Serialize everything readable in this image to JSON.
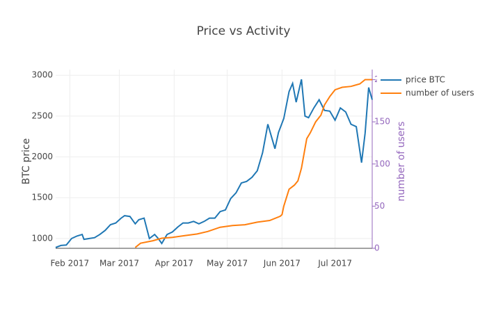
{
  "chart_data": {
    "type": "line",
    "title": "Price vs Activity",
    "y_label": "BTC price",
    "y2_label": "number of users",
    "xlim": [
      "2017-01-24",
      "2017-07-22"
    ],
    "xticks": [
      {
        "value": "2017-02-01",
        "label": "Feb 2017"
      },
      {
        "value": "2017-03-01",
        "label": "Mar 2017"
      },
      {
        "value": "2017-04-01",
        "label": "Apr 2017"
      },
      {
        "value": "2017-05-01",
        "label": "May 2017"
      },
      {
        "value": "2017-06-01",
        "label": "Jun 2017"
      },
      {
        "value": "2017-07-01",
        "label": "Jul 2017"
      }
    ],
    "ylim": [
      880,
      3070
    ],
    "yticks": [
      1000,
      1500,
      2000,
      2500,
      3000
    ],
    "y2lim": [
      0,
      212
    ],
    "y2ticks": [
      0,
      50,
      100,
      150,
      200
    ],
    "grid": true,
    "legend": "top-right",
    "series": [
      {
        "name": "price BTC",
        "color": "#1f77b4",
        "x": [
          "2017-01-24",
          "2017-01-27",
          "2017-01-30",
          "2017-02-02",
          "2017-02-05",
          "2017-02-08",
          "2017-02-09",
          "2017-02-12",
          "2017-02-15",
          "2017-02-18",
          "2017-02-21",
          "2017-02-24",
          "2017-02-27",
          "2017-03-02",
          "2017-03-04",
          "2017-03-07",
          "2017-03-10",
          "2017-03-12",
          "2017-03-15",
          "2017-03-18",
          "2017-03-21",
          "2017-03-23",
          "2017-03-25",
          "2017-03-28",
          "2017-03-31",
          "2017-04-03",
          "2017-04-06",
          "2017-04-09",
          "2017-04-12",
          "2017-04-15",
          "2017-04-18",
          "2017-04-21",
          "2017-04-24",
          "2017-04-27",
          "2017-04-30",
          "2017-05-03",
          "2017-05-06",
          "2017-05-09",
          "2017-05-12",
          "2017-05-15",
          "2017-05-18",
          "2017-05-21",
          "2017-05-24",
          "2017-05-26",
          "2017-05-28",
          "2017-05-30",
          "2017-06-02",
          "2017-06-05",
          "2017-06-07",
          "2017-06-09",
          "2017-06-12",
          "2017-06-14",
          "2017-06-16",
          "2017-06-19",
          "2017-06-22",
          "2017-06-25",
          "2017-06-28",
          "2017-07-01",
          "2017-07-04",
          "2017-07-07",
          "2017-07-10",
          "2017-07-13",
          "2017-07-16",
          "2017-07-18",
          "2017-07-20",
          "2017-07-22"
        ],
        "values": [
          890,
          915,
          920,
          1000,
          1030,
          1050,
          990,
          1000,
          1010,
          1050,
          1100,
          1170,
          1190,
          1250,
          1280,
          1270,
          1180,
          1230,
          1250,
          1000,
          1050,
          1000,
          940,
          1050,
          1080,
          1140,
          1190,
          1190,
          1210,
          1180,
          1210,
          1250,
          1250,
          1330,
          1350,
          1490,
          1560,
          1680,
          1700,
          1750,
          1830,
          2050,
          2400,
          2250,
          2100,
          2300,
          2470,
          2800,
          2900,
          2670,
          2950,
          2500,
          2480,
          2600,
          2700,
          2570,
          2560,
          2450,
          2600,
          2550,
          2400,
          2370,
          1930,
          2290,
          2850,
          2700
        ]
      },
      {
        "name": "number of users",
        "color": "#ff7f0e",
        "axis": "y2",
        "x": [
          "2017-03-10",
          "2017-03-13",
          "2017-03-20",
          "2017-03-25",
          "2017-03-31",
          "2017-04-07",
          "2017-04-14",
          "2017-04-20",
          "2017-04-27",
          "2017-05-04",
          "2017-05-11",
          "2017-05-18",
          "2017-05-25",
          "2017-05-31",
          "2017-06-01",
          "2017-06-02",
          "2017-06-05",
          "2017-06-08",
          "2017-06-10",
          "2017-06-12",
          "2017-06-15",
          "2017-06-17",
          "2017-06-20",
          "2017-06-23",
          "2017-06-25",
          "2017-06-28",
          "2017-07-01",
          "2017-07-05",
          "2017-07-10",
          "2017-07-15",
          "2017-07-18",
          "2017-07-22"
        ],
        "values": [
          1,
          6,
          9,
          12,
          13,
          15,
          17,
          20,
          25,
          27,
          28,
          31,
          33,
          38,
          40,
          50,
          70,
          75,
          80,
          95,
          130,
          137,
          150,
          158,
          170,
          180,
          188,
          191,
          192,
          195,
          200,
          200
        ]
      }
    ]
  }
}
